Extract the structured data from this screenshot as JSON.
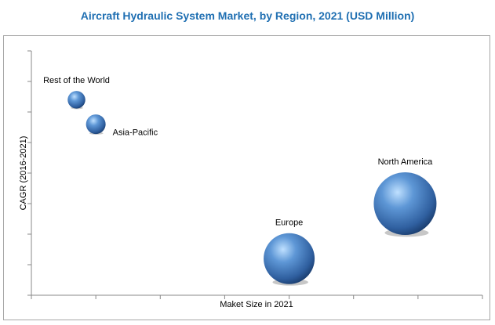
{
  "title_color": "#1f6fb2",
  "chart_data": {
    "type": "scatter",
    "title": "Aircraft Hydraulic System Market, by Region, 2021 (USD Million)",
    "xlabel": "Maket Size in 2021",
    "ylabel": "CAGR (2016-2021)",
    "grid": false,
    "legend": "none",
    "bubble_color": "#3d6fb0",
    "xlim": [
      0,
      7
    ],
    "ylim": [
      0,
      8
    ],
    "points": [
      {
        "label": "Rest of the World",
        "x": 0.7,
        "y": 6.4,
        "size": 0.9
      },
      {
        "label": "Asia-Pacific",
        "x": 1.0,
        "y": 5.6,
        "size": 1.0
      },
      {
        "label": "Europe",
        "x": 4.0,
        "y": 1.2,
        "size": 2.6
      },
      {
        "label": "North America",
        "x": 5.8,
        "y": 3.0,
        "size": 3.2
      }
    ]
  }
}
